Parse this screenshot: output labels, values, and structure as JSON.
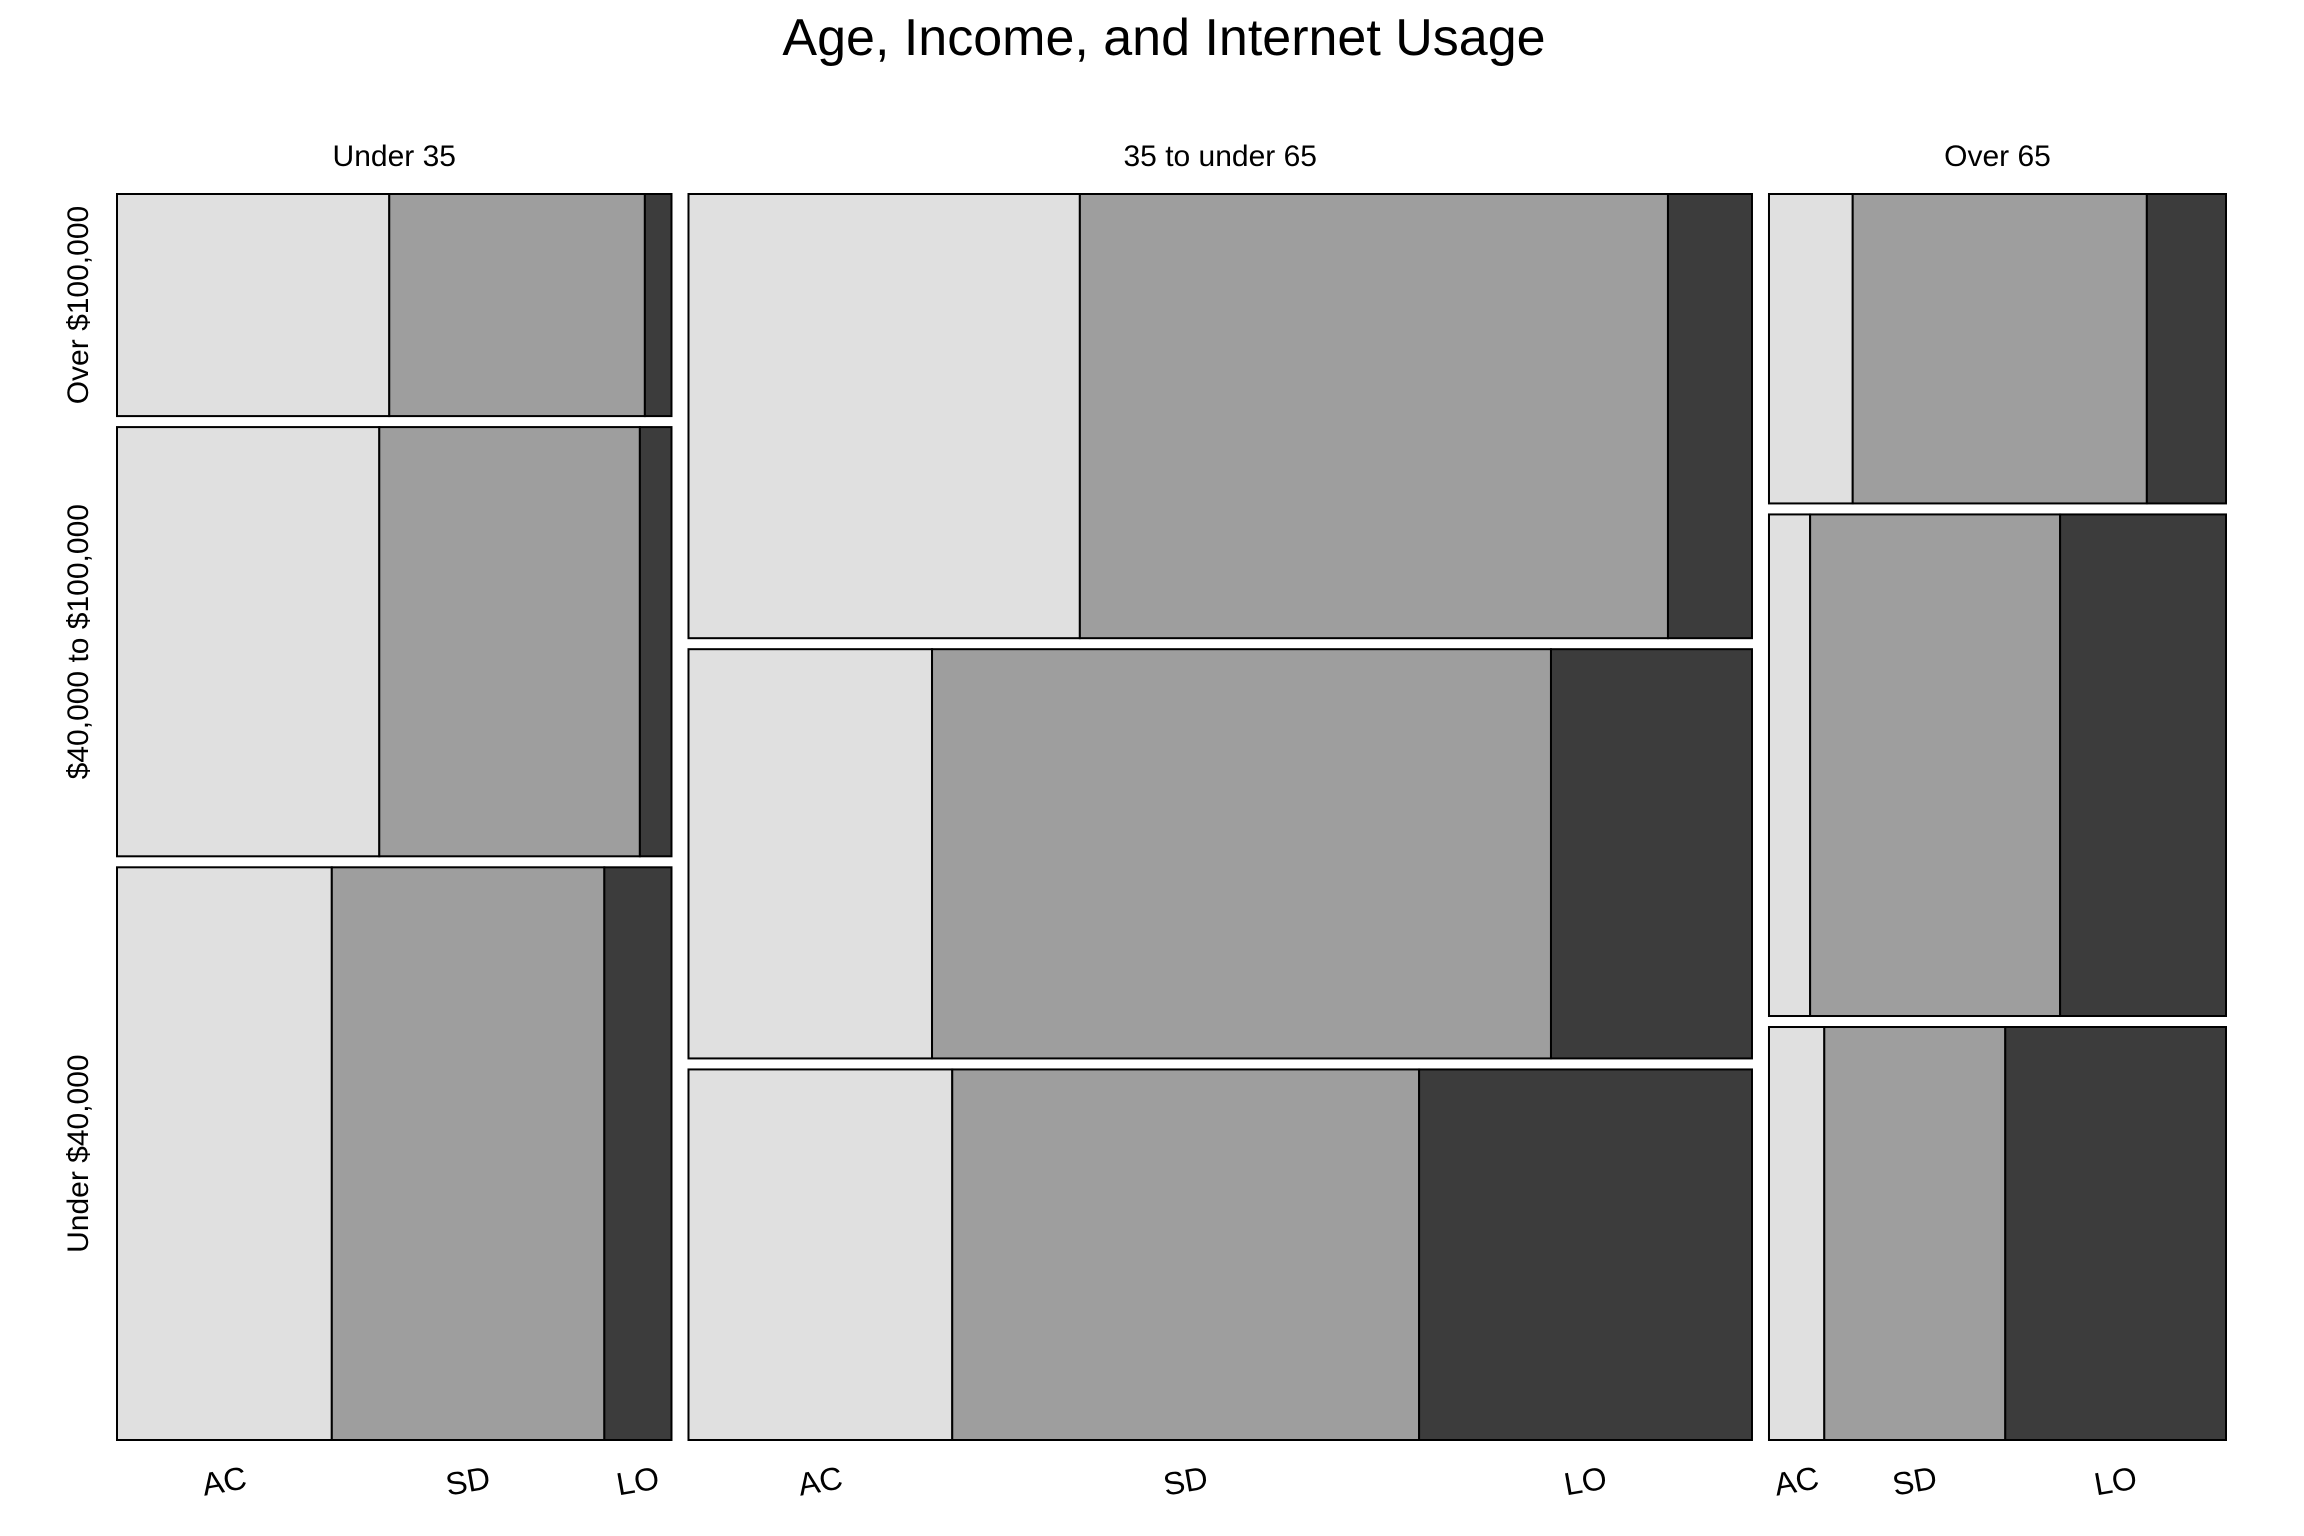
{
  "chart_data": {
    "type": "mosaic",
    "title": "Age, Income, and Internet Usage",
    "age_groups": [
      "Under 35",
      "35 to under 65",
      "Over 65"
    ],
    "income_groups": [
      "Over $100,000",
      "$40,000 to $100,000",
      "Under $40,000"
    ],
    "usage_categories": [
      "AC",
      "SD",
      "LO"
    ],
    "colors": {
      "AC": "#e0e0e0",
      "SD": "#9e9e9e",
      "LO": "#3c3c3c"
    },
    "age_share": [
      0.256,
      0.491,
      0.211
    ],
    "income_share_by_age": [
      [
        0.178,
        0.344,
        0.459
      ],
      [
        0.356,
        0.328,
        0.297
      ],
      [
        0.248,
        0.402,
        0.331
      ]
    ],
    "usage_share": [
      [
        [
          0.491,
          0.461,
          0.048
        ],
        [
          0.473,
          0.47,
          0.057
        ],
        [
          0.387,
          0.491,
          0.121
        ]
      ],
      [
        [
          0.368,
          0.553,
          0.079
        ],
        [
          0.229,
          0.582,
          0.189
        ],
        [
          0.248,
          0.439,
          0.313
        ]
      ],
      [
        [
          0.183,
          0.643,
          0.173
        ],
        [
          0.09,
          0.547,
          0.363
        ],
        [
          0.121,
          0.396,
          0.483
        ]
      ]
    ]
  }
}
